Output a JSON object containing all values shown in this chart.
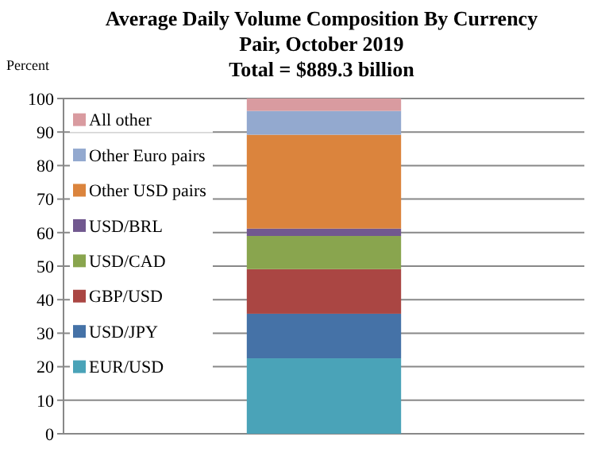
{
  "chart_data": {
    "type": "bar",
    "stacked": true,
    "title": "Average Daily Volume Composition By Currency",
    "subtitle": "Pair, October 2019\nTotal = $889.3 billion",
    "ylabel": "Percent",
    "categories": [
      null
    ],
    "ylim": [
      0,
      100
    ],
    "yticks": [
      0,
      10,
      20,
      30,
      40,
      50,
      60,
      70,
      80,
      90,
      100
    ],
    "grid": "y",
    "legend": "left",
    "series": [
      {
        "name": "EUR/USD",
        "color": "#4aa3b8",
        "values": [
          22.5
        ]
      },
      {
        "name": "USD/JPY",
        "color": "#4572a7",
        "values": [
          13.3
        ]
      },
      {
        "name": "GBP/USD",
        "color": "#aa4643",
        "values": [
          13.3
        ]
      },
      {
        "name": "USD/CAD",
        "color": "#89a54e",
        "values": [
          9.9
        ]
      },
      {
        "name": "USD/BRL",
        "color": "#71588f",
        "values": [
          2.2
        ]
      },
      {
        "name": "Other USD pairs",
        "color": "#db843d",
        "values": [
          28
        ]
      },
      {
        "name": "Other Euro pairs",
        "color": "#93a9cf",
        "values": [
          7.1
        ]
      },
      {
        "name": "All other",
        "color": "#d99ba0",
        "values": [
          3.7
        ]
      }
    ]
  }
}
